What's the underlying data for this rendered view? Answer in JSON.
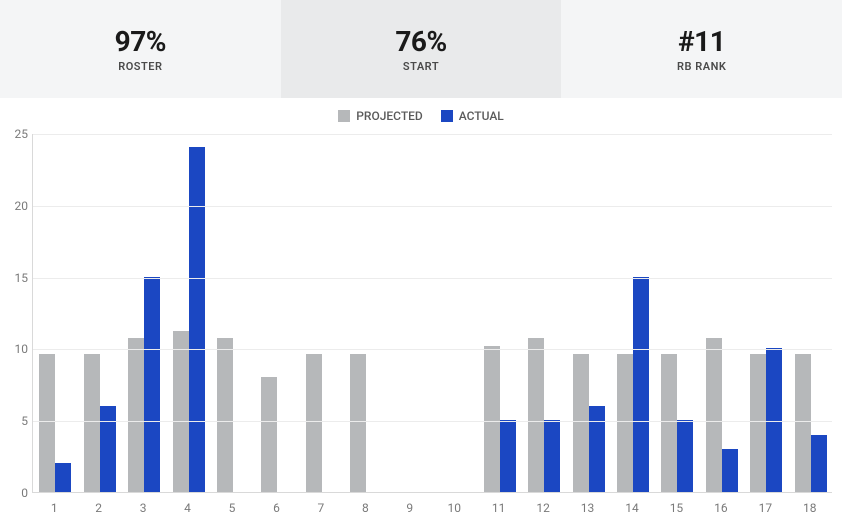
{
  "stats": [
    {
      "value": "97%",
      "label": "ROSTER",
      "active": false
    },
    {
      "value": "76%",
      "label": "START",
      "active": true
    },
    {
      "value": "#11",
      "label": "RB RANK",
      "active": false
    }
  ],
  "legend": [
    {
      "label": "PROJECTED",
      "color": "#b6b8ba"
    },
    {
      "label": "ACTUAL",
      "color": "#1b47c2"
    }
  ],
  "chart": {
    "type": "bar",
    "background_color": "#ffffff",
    "grid_color": "#ececec",
    "axis_color": "#d9d9d9",
    "tick_color": "#7a7a7a",
    "tick_fontsize": 12,
    "ylim": [
      0,
      25
    ],
    "ytick_step": 5,
    "categories": [
      "1",
      "2",
      "3",
      "4",
      "5",
      "6",
      "7",
      "8",
      "9",
      "10",
      "11",
      "12",
      "13",
      "14",
      "15",
      "16",
      "17",
      "18"
    ],
    "bar_group_width": 0.72,
    "series": [
      {
        "name": "PROJECTED",
        "color": "#b6b8ba",
        "values": [
          9.6,
          9.6,
          10.7,
          11.2,
          10.7,
          8.0,
          9.6,
          9.6,
          0,
          0,
          10.2,
          10.7,
          9.6,
          9.6,
          9.6,
          10.7,
          9.6,
          9.6
        ]
      },
      {
        "name": "ACTUAL",
        "color": "#1b47c2",
        "values": [
          2,
          6,
          15,
          24,
          0,
          0,
          0,
          0,
          0,
          0,
          5,
          5,
          6,
          15,
          5,
          3,
          10,
          4
        ]
      }
    ]
  }
}
